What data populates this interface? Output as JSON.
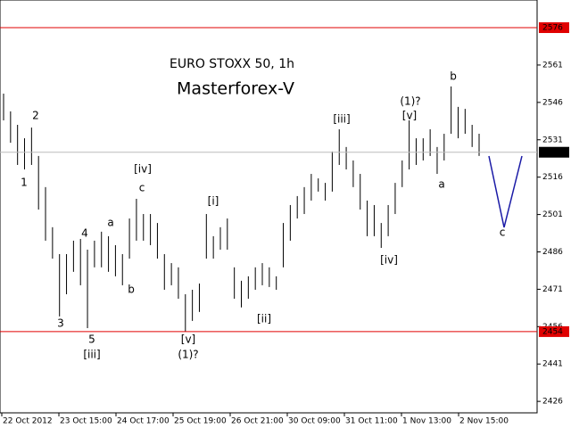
{
  "chart_data": {
    "type": "ohlc",
    "title": "EURO STOXX 50, 1h",
    "subtitle": "Masterforex-V",
    "subtitle_color": "#e00000",
    "bar_color": "#000000",
    "ylim": [
      2421.4,
      2587.1
    ],
    "yticks": [
      2426,
      2441,
      2456,
      2471,
      2486,
      2501,
      2516,
      2531,
      2546,
      2561
    ],
    "levels": [
      2576,
      2454
    ],
    "level_color": "#e00000",
    "current_price": 2526,
    "x_labels": [
      "22 Oct 2012",
      "23 Oct 15:00",
      "24 Oct 17:00",
      "25 Oct 19:00",
      "26 Oct 21:00",
      "30 Oct 09:00",
      "31 Oct 11:00",
      "1 Nov 13:00",
      "2 Nov 15:00"
    ],
    "high": [
      2549.5,
      2542.4,
      2537.0,
      2531.6,
      2535.9,
      2524.5,
      2512.0,
      2495.9,
      2485.1,
      2485.1,
      2490.5,
      2491.2,
      2486.9,
      2490.5,
      2494.1,
      2492.3,
      2488.7,
      2485.1,
      2499.4,
      2507.3,
      2501.2,
      2501.2,
      2497.6,
      2485.1,
      2481.5,
      2479.8,
      2469.0,
      2470.8,
      2473.3,
      2501.2,
      2492.3,
      2495.9,
      2499.4,
      2479.8,
      2474.4,
      2476.2,
      2479.8,
      2481.5,
      2479.8,
      2476.2,
      2497.6,
      2504.8,
      2508.4,
      2512.0,
      2517.3,
      2515.5,
      2513.7,
      2526.3,
      2535.2,
      2528.1,
      2522.7,
      2517.3,
      2506.6,
      2504.8,
      2497.6,
      2504.8,
      2513.7,
      2522.7,
      2538.8,
      2531.6,
      2531.6,
      2535.2,
      2528.1,
      2533.4,
      2552.4,
      2544.2,
      2543.4,
      2537.0,
      2533.4
    ],
    "low": [
      2538.8,
      2529.8,
      2520.9,
      2519.1,
      2520.9,
      2503.0,
      2490.5,
      2483.3,
      2460.1,
      2469.0,
      2478.0,
      2472.6,
      2455.4,
      2479.8,
      2479.8,
      2478.0,
      2476.2,
      2472.6,
      2483.3,
      2490.5,
      2490.5,
      2488.7,
      2483.3,
      2470.8,
      2472.6,
      2467.2,
      2454.0,
      2458.3,
      2461.9,
      2483.3,
      2483.3,
      2486.9,
      2486.9,
      2467.2,
      2463.7,
      2467.2,
      2470.8,
      2472.6,
      2471.9,
      2470.8,
      2479.8,
      2490.5,
      2499.4,
      2501.2,
      2506.6,
      2510.2,
      2506.6,
      2510.2,
      2520.9,
      2519.1,
      2512.0,
      2503.0,
      2492.3,
      2492.3,
      2487.6,
      2492.3,
      2501.2,
      2512.0,
      2519.1,
      2520.9,
      2522.7,
      2524.5,
      2517.3,
      2522.7,
      2533.4,
      2531.6,
      2533.4,
      2528.1,
      2524.5
    ],
    "annotations": [
      "1",
      "2",
      "3",
      "4",
      "5",
      "[iii]",
      "a",
      "b",
      "[iv]",
      "c",
      "[i]",
      "[v]",
      "(1)?",
      "[ii]",
      "[iii]",
      "[iv]",
      "(1)?",
      "[v]",
      "a",
      "b",
      "c"
    ]
  }
}
